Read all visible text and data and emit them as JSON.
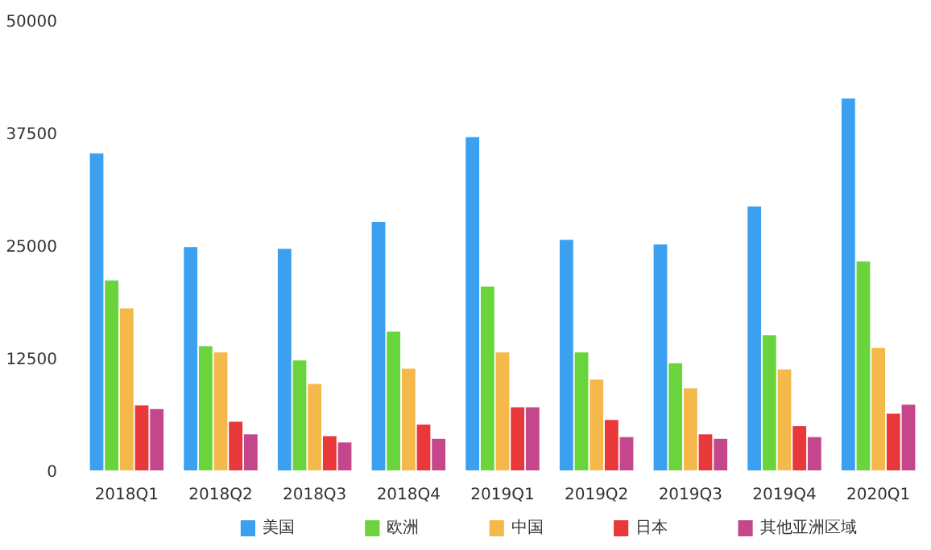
{
  "chart_data": {
    "type": "bar",
    "categories": [
      "2018Q1",
      "2018Q2",
      "2018Q3",
      "2018Q4",
      "2019Q1",
      "2019Q2",
      "2019Q3",
      "2019Q4",
      "2020Q1"
    ],
    "series": [
      {
        "name": "美国",
        "color": "#3ba0f0",
        "values": [
          35200,
          24800,
          24600,
          27600,
          37000,
          25600,
          25100,
          29300,
          41300
        ]
      },
      {
        "name": "欧洲",
        "color": "#6ad43c",
        "values": [
          21100,
          13800,
          12200,
          15400,
          20400,
          13100,
          11900,
          15000,
          23200
        ]
      },
      {
        "name": "中国",
        "color": "#f5b84a",
        "values": [
          18000,
          13100,
          9600,
          11300,
          13100,
          10100,
          9100,
          11200,
          13600
        ]
      },
      {
        "name": "日本",
        "color": "#e8383a",
        "values": [
          7200,
          5400,
          3800,
          5100,
          7000,
          5600,
          4000,
          4900,
          6300
        ]
      },
      {
        "name": "其他亚洲区域",
        "color": "#c4478c",
        "values": [
          6800,
          4000,
          3100,
          3500,
          7000,
          3700,
          3500,
          3700,
          7300
        ]
      }
    ],
    "ylim": [
      0,
      50000
    ],
    "yticks": [
      0,
      12500,
      25000,
      37500,
      50000
    ],
    "grid": false,
    "legend": "bottom"
  }
}
